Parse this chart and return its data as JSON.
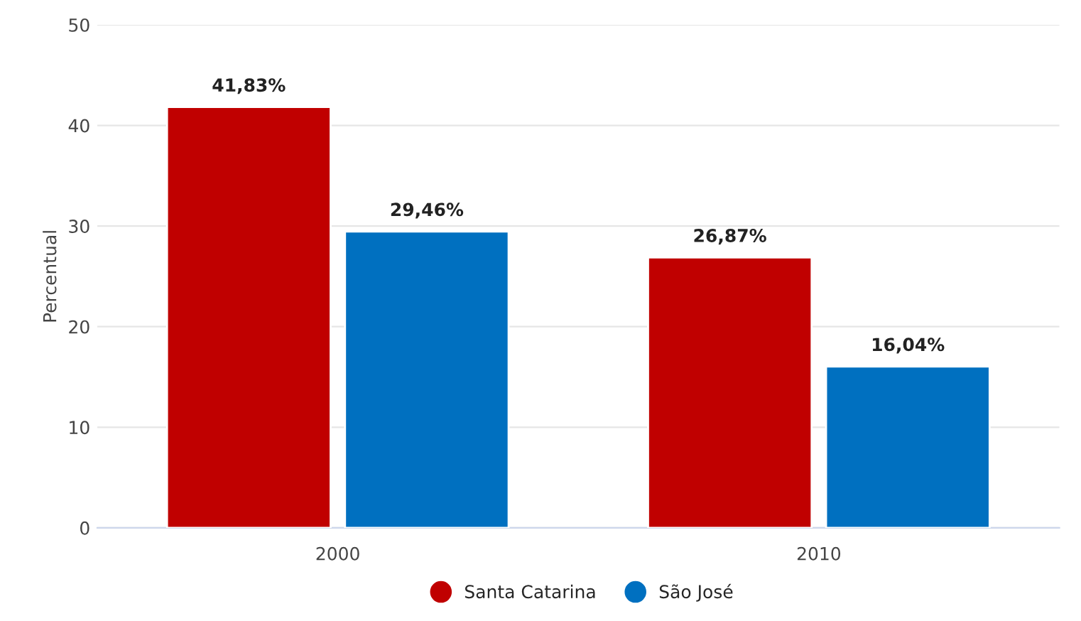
{
  "chart_data": {
    "type": "bar",
    "ylabel": "Percentual",
    "categories": [
      "2000",
      "2010"
    ],
    "series": [
      {
        "name": "Santa Catarina",
        "color": "#c00000",
        "values": [
          41.83,
          26.87
        ],
        "value_labels": [
          "41,83%",
          "26,87%"
        ]
      },
      {
        "name": "São José",
        "color": "#0070c0",
        "values": [
          29.46,
          16.04
        ],
        "value_labels": [
          "29,46%",
          "16,04%"
        ]
      }
    ],
    "ylim": [
      0,
      50
    ],
    "yticks": [
      0,
      10,
      20,
      30,
      40,
      50
    ],
    "grid": "y",
    "legend": "bottom"
  }
}
